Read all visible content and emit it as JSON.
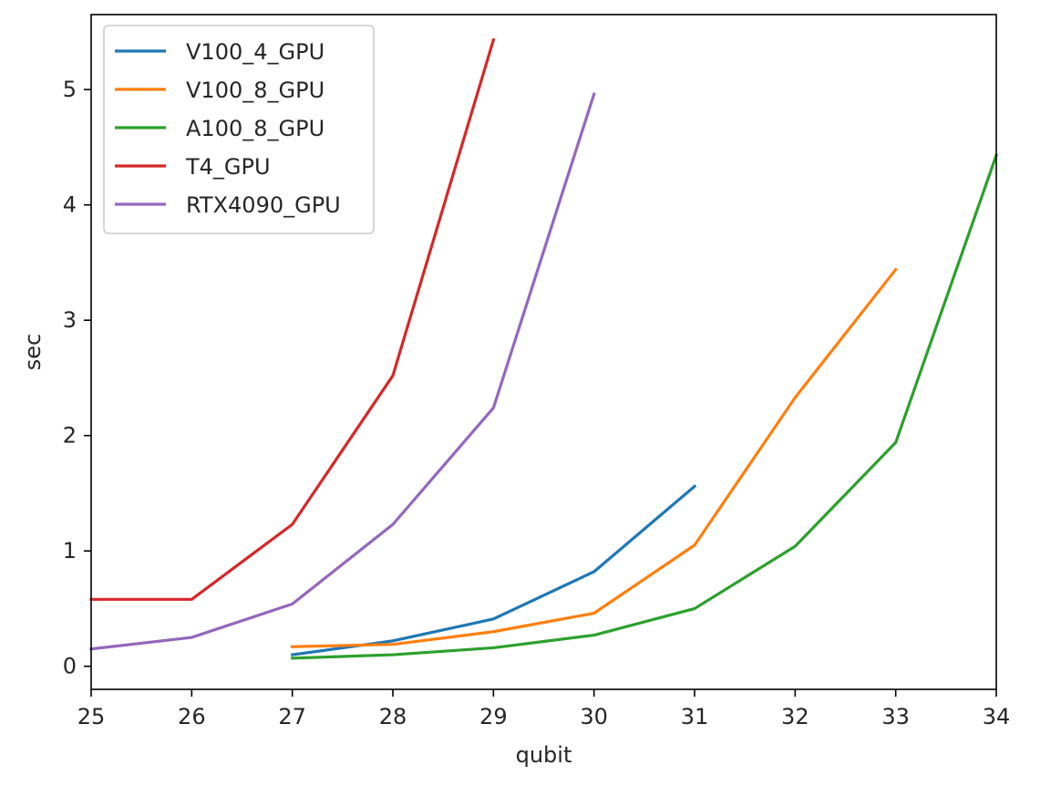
{
  "chart_data": {
    "type": "line",
    "title": "",
    "xlabel": "qubit",
    "ylabel": "sec",
    "xlim": [
      25,
      34
    ],
    "ylim": [
      -0.2,
      5.65
    ],
    "xticks": [
      "25",
      "26",
      "27",
      "28",
      "29",
      "30",
      "31",
      "32",
      "33",
      "34"
    ],
    "yticks": [
      "0",
      "1",
      "2",
      "3",
      "4",
      "5"
    ],
    "grid": false,
    "legend_position": "top-left",
    "series": [
      {
        "name": "V100_4_GPU",
        "color": "#1f77b4",
        "x": [
          27,
          28,
          29,
          30,
          31
        ],
        "y": [
          0.1,
          0.22,
          0.41,
          0.82,
          1.56
        ]
      },
      {
        "name": "V100_8_GPU",
        "color": "#ff7f0e",
        "x": [
          27,
          28,
          29,
          30,
          31,
          32,
          33
        ],
        "y": [
          0.17,
          0.19,
          0.3,
          0.46,
          1.05,
          2.33,
          3.44
        ]
      },
      {
        "name": "A100_8_GPU",
        "color": "#2ca02c",
        "x": [
          27,
          28,
          29,
          30,
          31,
          32,
          33,
          34
        ],
        "y": [
          0.07,
          0.1,
          0.16,
          0.27,
          0.5,
          1.04,
          1.94,
          4.43
        ]
      },
      {
        "name": "T4_GPU",
        "color": "#d62728",
        "x": [
          25,
          26,
          27,
          28,
          29
        ],
        "y": [
          0.58,
          0.58,
          1.23,
          2.52,
          5.43
        ]
      },
      {
        "name": "RTX4090_GPU",
        "color": "#9467bd",
        "x": [
          25,
          26,
          27,
          28,
          29,
          30
        ],
        "y": [
          0.15,
          0.25,
          0.54,
          1.23,
          2.24,
          4.96
        ]
      }
    ]
  }
}
